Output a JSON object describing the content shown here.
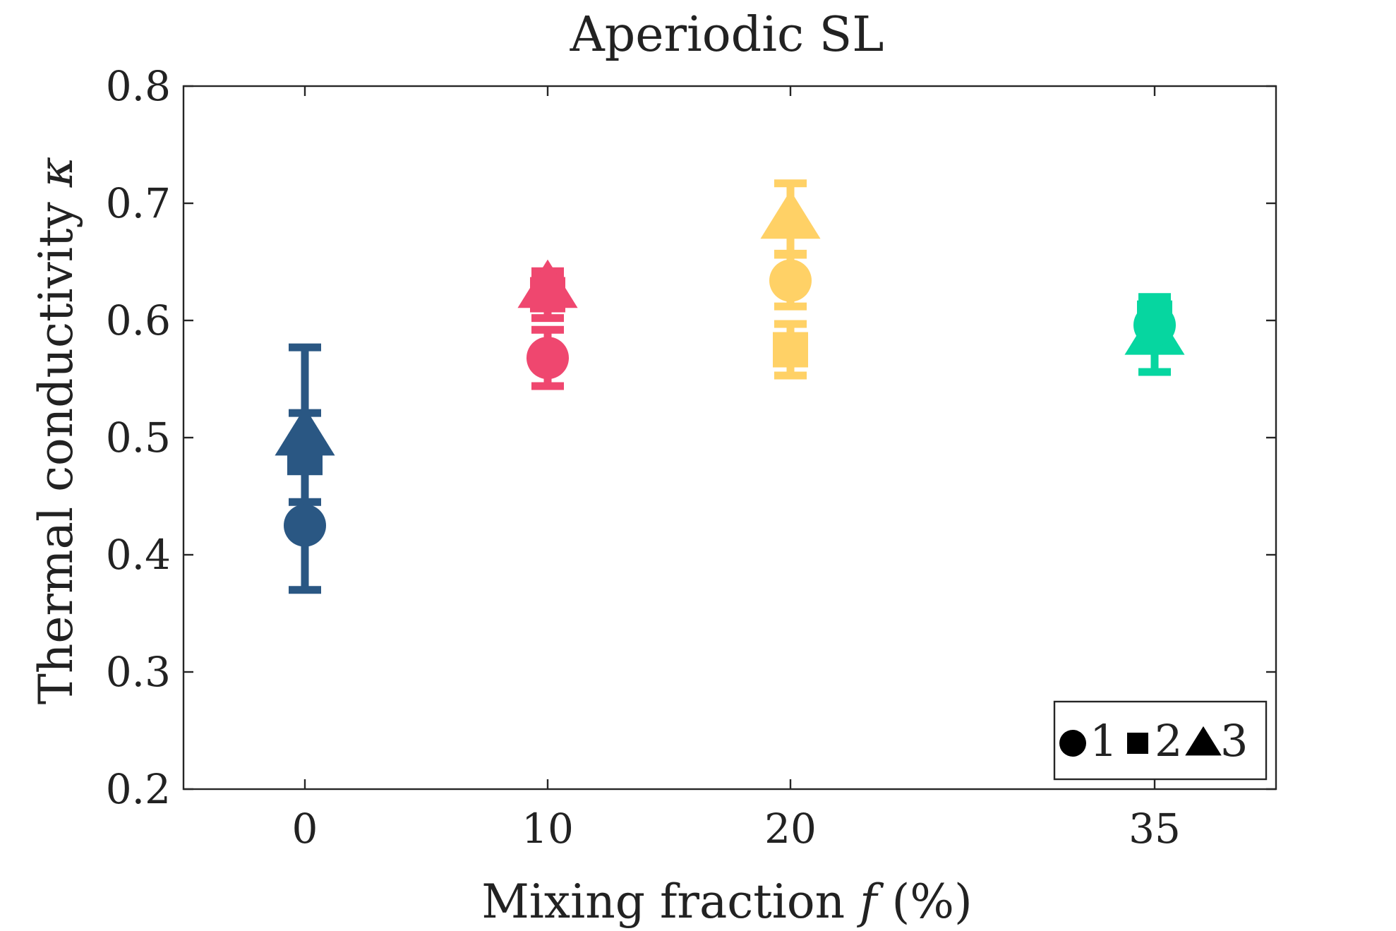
{
  "chart_data": {
    "type": "scatter",
    "title": "Aperiodic SL",
    "xlabel": "Mixing fraction",
    "xlabel_var": "f",
    "xlabel_unit": "(%)",
    "ylabel": "Thermal conductivity",
    "ylabel_var": "κ",
    "ylim": [
      0.2,
      0.8
    ],
    "yticks": [
      0.2,
      0.3,
      0.4,
      0.5,
      0.6,
      0.7,
      0.8
    ],
    "ytick_labels": [
      "0.2",
      "0.3",
      "0.4",
      "0.5",
      "0.6",
      "0.7",
      "0.8"
    ],
    "xlim": [
      -5,
      40
    ],
    "xticks": [
      0,
      10,
      20,
      35
    ],
    "xtick_labels": [
      "0",
      "10",
      "20",
      "35"
    ],
    "grid": false,
    "legend": {
      "placement": "bottom-right",
      "entries": [
        {
          "marker": "circle",
          "label": "1"
        },
        {
          "marker": "square",
          "label": "2"
        },
        {
          "marker": "triangle",
          "label": "3"
        }
      ]
    },
    "groups": [
      {
        "x": 0,
        "color": "#2a5783",
        "points": [
          {
            "series": "1",
            "marker": "circle",
            "y": 0.425,
            "yerr": 0.055
          },
          {
            "series": "2",
            "marker": "square",
            "y": 0.483,
            "yerr": 0.038
          },
          {
            "series": "3",
            "marker": "triangle",
            "y": 0.502,
            "yerr": 0.075
          }
        ]
      },
      {
        "x": 10,
        "color": "#ef476f",
        "points": [
          {
            "series": "1",
            "marker": "circle",
            "y": 0.568,
            "yerr": 0.024
          },
          {
            "series": "2",
            "marker": "square",
            "y": 0.622,
            "yerr": 0.02
          },
          {
            "series": "3",
            "marker": "triangle",
            "y": 0.628,
            "yerr": 0.012
          }
        ]
      },
      {
        "x": 20,
        "color": "#ffd166",
        "points": [
          {
            "series": "1",
            "marker": "circle",
            "y": 0.634,
            "yerr": 0.022
          },
          {
            "series": "2",
            "marker": "square",
            "y": 0.575,
            "yerr": 0.022
          },
          {
            "series": "3",
            "marker": "triangle",
            "y": 0.687,
            "yerr": 0.03
          }
        ]
      },
      {
        "x": 35,
        "color": "#06d6a0",
        "points": [
          {
            "series": "1",
            "marker": "circle",
            "y": 0.596,
            "yerr": 0.012
          },
          {
            "series": "2",
            "marker": "square",
            "y": 0.602,
            "yerr": 0.012
          },
          {
            "series": "3",
            "marker": "triangle",
            "y": 0.588,
            "yerr": 0.032
          }
        ]
      }
    ]
  }
}
